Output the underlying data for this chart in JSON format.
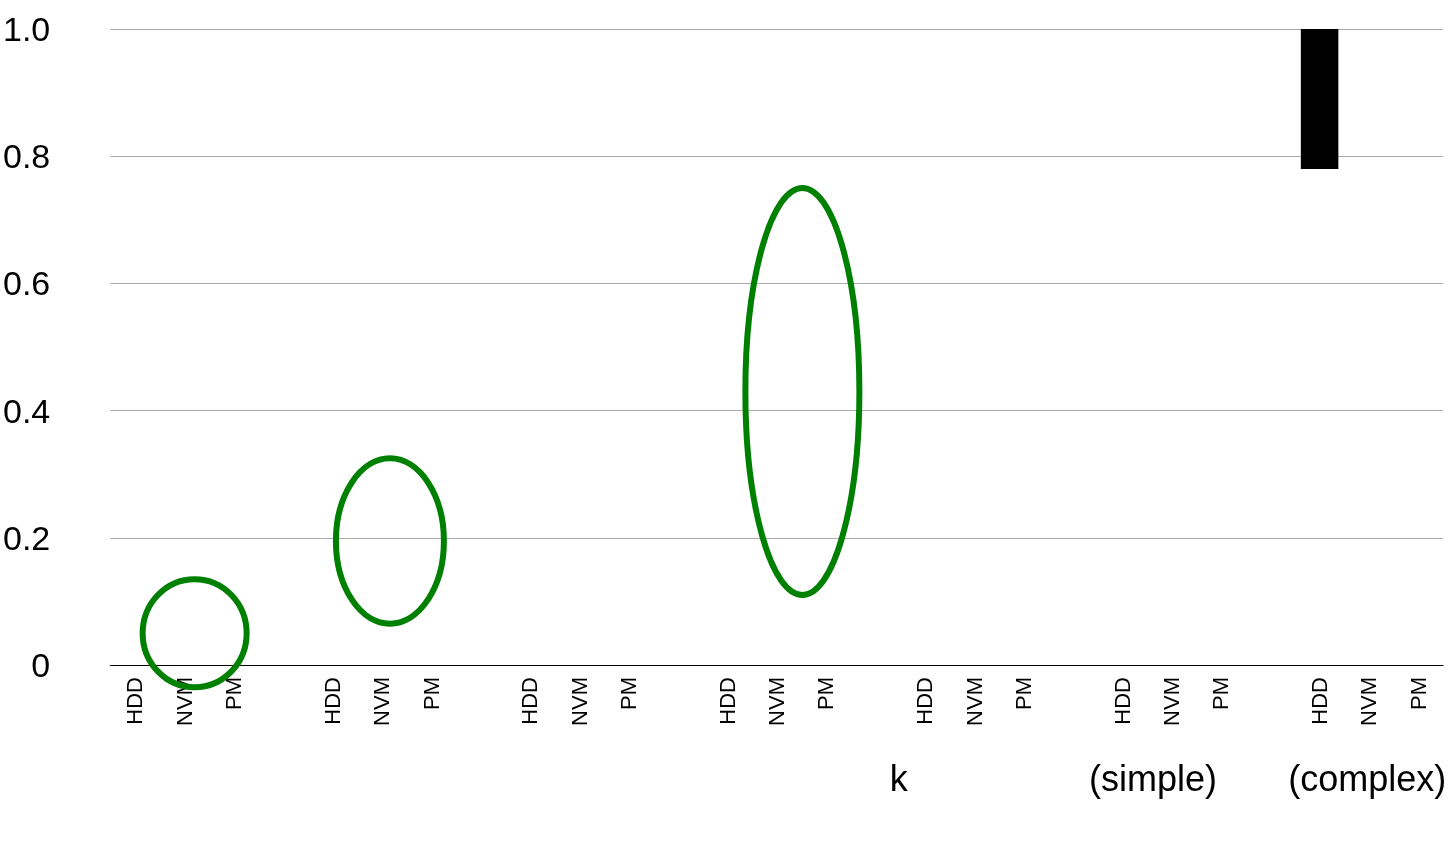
{
  "chart_data": {
    "type": "bar",
    "categories": [
      "HDD",
      "NVM",
      "PM",
      null,
      "HDD",
      "NVM",
      "PM",
      null,
      "HDD",
      "NVM",
      "PM",
      null,
      "HDD",
      "NVM",
      "PM",
      null,
      "HDD",
      "NVM",
      "PM",
      null,
      "HDD",
      "NVM",
      "PM",
      null,
      "HDD",
      "NVM",
      "PM"
    ],
    "values": [
      null,
      null,
      null,
      null,
      null,
      null,
      null,
      null,
      null,
      null,
      null,
      null,
      null,
      null,
      null,
      null,
      null,
      null,
      null,
      null,
      null,
      null,
      null,
      null,
      0.22,
      null,
      null
    ],
    "base": [
      null,
      null,
      null,
      null,
      null,
      null,
      null,
      null,
      null,
      null,
      null,
      null,
      null,
      null,
      null,
      null,
      null,
      null,
      null,
      null,
      null,
      null,
      null,
      null,
      0.78,
      null,
      null
    ],
    "color": "#000000",
    "ylim": [
      0,
      1
    ],
    "yticks": [
      0,
      0.2,
      0.4,
      0.6,
      0.8,
      {
        "value": 1,
        "label": "1.0"
      }
    ],
    "grid": "y",
    "annotations": [
      "k",
      "(simple)",
      "(complex)"
    ]
  }
}
